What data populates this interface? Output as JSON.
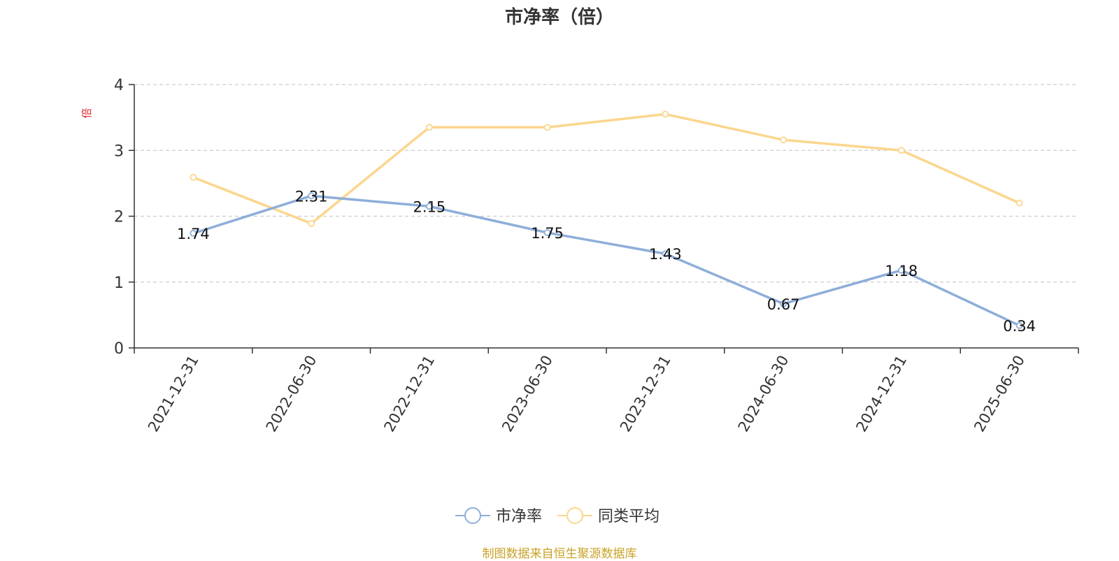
{
  "chart_data": {
    "type": "line",
    "title": "市净率（倍）",
    "ylabel": "倍",
    "xlabel": "",
    "ylim": [
      0,
      4
    ],
    "yticks": [
      0,
      1,
      2,
      3,
      4
    ],
    "grid": true,
    "legend_position": "bottom-center",
    "categories": [
      "2021-12-31",
      "2022-06-30",
      "2022-12-31",
      "2023-06-30",
      "2023-12-31",
      "2024-06-30",
      "2024-12-31",
      "2025-06-30"
    ],
    "series": [
      {
        "name": "市净率",
        "color": "#8eaed9",
        "show_labels": true,
        "values": [
          1.74,
          2.31,
          2.15,
          1.75,
          1.43,
          0.67,
          1.18,
          0.34
        ]
      },
      {
        "name": "同类平均",
        "color": "#fbd68e",
        "show_labels": false,
        "values": [
          2.59,
          1.89,
          3.35,
          3.35,
          3.55,
          3.16,
          3.0,
          2.2
        ]
      }
    ]
  },
  "footer": {
    "source": "制图数据来自恒生聚源数据库"
  },
  "colors": {
    "axis": "#333333",
    "grid": "#cccccc",
    "ylabel": "#e0262d",
    "source": "#c9a227"
  }
}
